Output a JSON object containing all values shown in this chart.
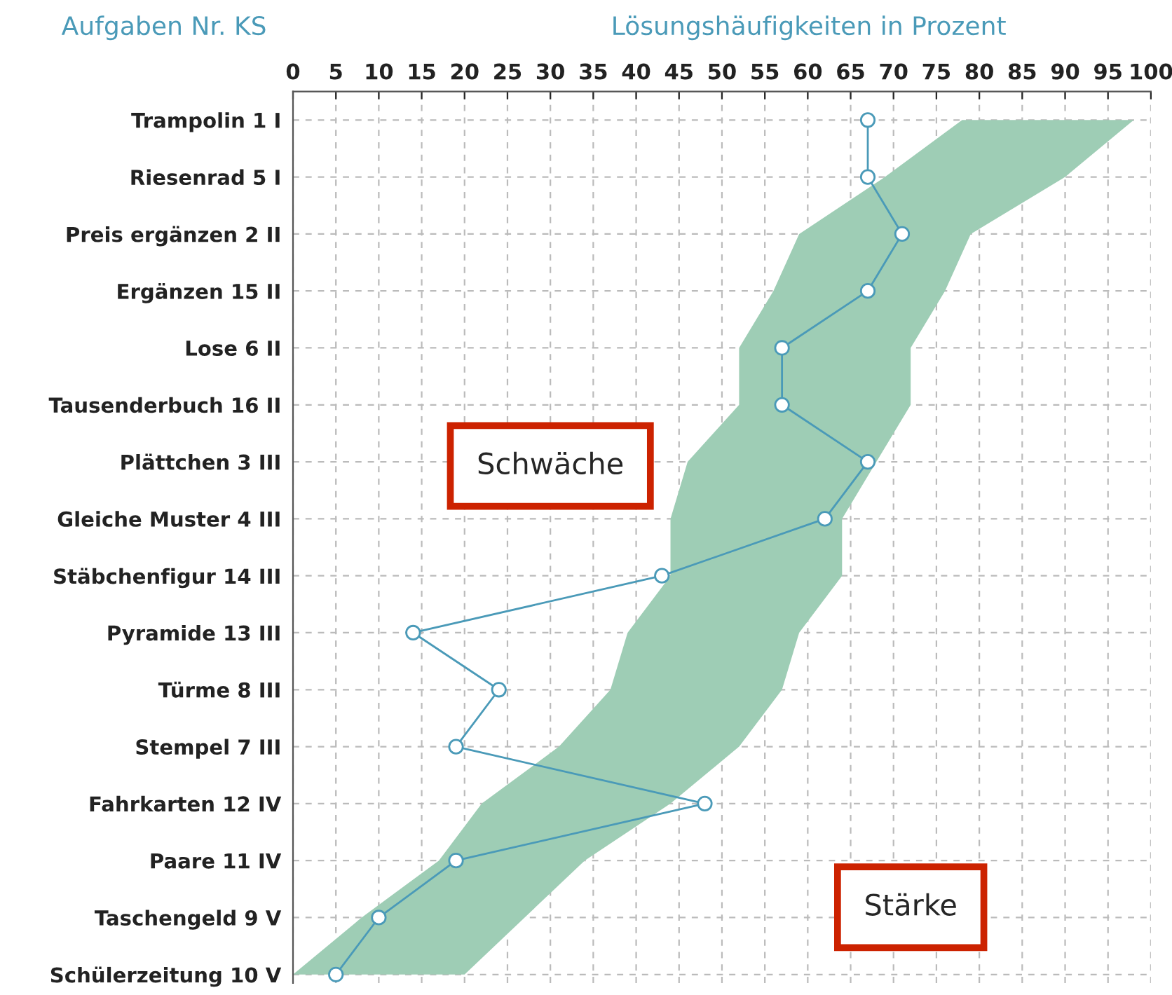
{
  "chart_data": {
    "type": "line",
    "orientation": "horizontal",
    "xlabel": "Lösungshäufigkeiten in Prozent",
    "ylabel": "Aufgaben Nr. KS",
    "categories": [
      "Trampolin 1 I",
      "Riesenrad 5 I",
      "Preis ergänzen 2 II",
      "Ergänzen 15 II",
      "Lose 6 II",
      "Tausenderbuch 16 II",
      "Plättchen 3 III",
      "Gleiche Muster 4 III",
      "Stäbchenfigur 14 III",
      "Pyramide 13 III",
      "Türme 8 III",
      "Stempel 7 III",
      "Fahrkarten 12 IV",
      "Paare 11 IV",
      "Taschengeld 9 V",
      "Schülerzeitung 10 V"
    ],
    "series": [
      {
        "color": "#4a9ab8",
        "marker": "circle",
        "values": [
          67,
          67,
          71,
          67,
          57,
          57,
          67,
          62,
          43,
          14,
          24,
          19,
          48,
          19,
          10,
          5
        ],
        "lower": [
          78,
          69,
          59,
          56,
          52,
          52,
          46,
          44,
          44,
          39,
          37,
          31,
          22,
          17,
          8,
          0
        ],
        "upper": [
          98,
          90,
          79,
          76,
          72,
          72,
          68,
          64,
          64,
          59,
          57,
          52,
          44,
          34,
          27,
          20
        ]
      }
    ],
    "line_style": "solid",
    "xlim": [
      0,
      100
    ],
    "xticks": [
      0,
      5,
      10,
      15,
      20,
      25,
      30,
      35,
      40,
      45,
      50,
      55,
      60,
      65,
      70,
      75,
      80,
      85,
      90,
      95,
      100
    ],
    "grid": true,
    "annotations": [
      "Schwäche",
      "Stärke"
    ]
  }
}
